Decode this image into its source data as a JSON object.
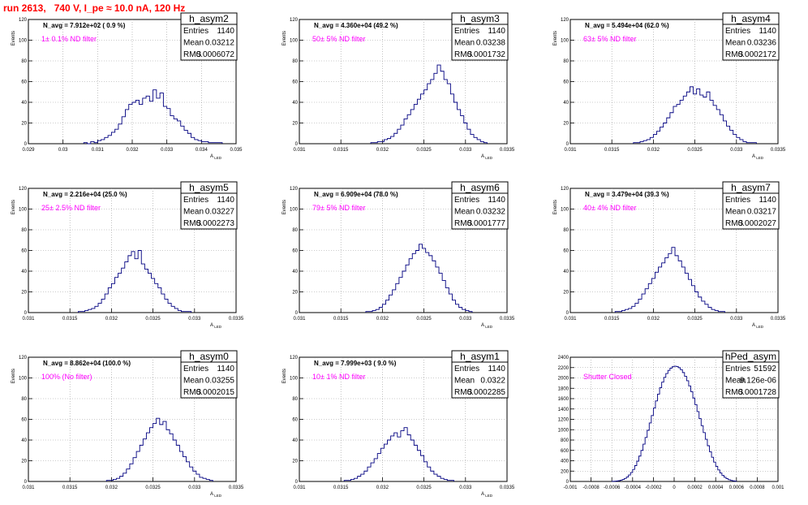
{
  "title": "run 2613,   740 V, I_pe ≈ 10.0 nA, 120 Hz",
  "chart_data": [
    {
      "type": "histogram",
      "name": "h_asym2",
      "n_avg": "N_avg = 7.912e+02 ( 0.9 %)",
      "filter": "1± 0.1% ND filter",
      "stats": {
        "Entries": "1140",
        "Mean": "0.03212",
        "RMS": "0.0006072"
      },
      "xlabel": "A_{LED}",
      "ylabel": "Events",
      "xlim": [
        0.029,
        0.035
      ],
      "ylim": [
        0,
        120
      ],
      "xticks": [
        "0.029",
        "0.03",
        "0.031",
        "0.032",
        "0.033",
        "0.034",
        "0.035"
      ],
      "yticks": [
        "0",
        "20",
        "40",
        "60",
        "80",
        "100",
        "120"
      ],
      "bin_width": 0.0001,
      "bin_start": 0.0306,
      "counts": [
        1,
        0,
        2,
        1,
        3,
        4,
        6,
        8,
        11,
        14,
        19,
        26,
        33,
        38,
        40,
        42,
        38,
        44,
        46,
        41,
        52,
        44,
        49,
        36,
        34,
        27,
        24,
        22,
        17,
        13,
        10,
        6,
        4,
        3,
        2,
        2,
        1,
        1,
        1,
        1
      ]
    },
    {
      "type": "histogram",
      "name": "h_asym3",
      "n_avg": "N_avg = 4.360e+04 (49.2 %)",
      "filter": "50± 5% ND filter",
      "stats": {
        "Entries": "1140",
        "Mean": "0.03238",
        "RMS": "0.0001732"
      },
      "xlabel": "A_{LED}",
      "ylabel": "Events",
      "xlim": [
        0.031,
        0.0335
      ],
      "ylim": [
        0,
        120
      ],
      "xticks": [
        "0.031",
        "0.0315",
        "0.032",
        "0.0325",
        "0.033",
        "0.0335"
      ],
      "yticks": [
        "0",
        "20",
        "40",
        "60",
        "80",
        "100",
        "120"
      ],
      "bin_width": 4e-05,
      "bin_start": 0.03186,
      "counts": [
        1,
        1,
        2,
        2,
        4,
        5,
        7,
        10,
        14,
        18,
        24,
        28,
        33,
        38,
        43,
        48,
        52,
        58,
        62,
        68,
        76,
        70,
        62,
        58,
        48,
        40,
        33,
        27,
        20,
        14,
        9,
        6,
        4,
        2,
        1
      ]
    },
    {
      "type": "histogram",
      "name": "h_asym4",
      "n_avg": "N_avg = 5.494e+04 (62.0 %)",
      "filter": "63± 5% ND filter",
      "stats": {
        "Entries": "1140",
        "Mean": "0.03236",
        "RMS": "0.0002172"
      },
      "xlabel": "A_{LED}",
      "ylabel": "Events",
      "xlim": [
        0.031,
        0.0335
      ],
      "ylim": [
        0,
        120
      ],
      "xticks": [
        "0.031",
        "0.0315",
        "0.032",
        "0.0325",
        "0.033",
        "0.0335"
      ],
      "yticks": [
        "0",
        "20",
        "40",
        "60",
        "80",
        "100",
        "120"
      ],
      "bin_width": 4e-05,
      "bin_start": 0.03176,
      "counts": [
        1,
        1,
        2,
        3,
        4,
        6,
        9,
        12,
        16,
        20,
        25,
        30,
        36,
        38,
        42,
        46,
        50,
        55,
        48,
        53,
        47,
        45,
        50,
        42,
        37,
        33,
        28,
        22,
        17,
        13,
        9,
        6,
        4,
        2,
        1,
        1,
        1
      ]
    },
    {
      "type": "histogram",
      "name": "h_asym5",
      "n_avg": "N_avg = 2.216e+04 (25.0 %)",
      "filter": "25± 2.5% ND filter",
      "stats": {
        "Entries": "1140",
        "Mean": "0.03227",
        "RMS": "0.0002273"
      },
      "xlabel": "A_{LED}",
      "ylabel": "Events",
      "xlim": [
        0.031,
        0.0335
      ],
      "ylim": [
        0,
        120
      ],
      "xticks": [
        "0.031",
        "0.0315",
        "0.032",
        "0.0325",
        "0.033",
        "0.0335"
      ],
      "yticks": [
        "0",
        "20",
        "40",
        "60",
        "80",
        "100",
        "120"
      ],
      "bin_width": 4e-05,
      "bin_start": 0.0316,
      "counts": [
        1,
        1,
        2,
        3,
        4,
        6,
        9,
        13,
        18,
        24,
        28,
        34,
        38,
        43,
        49,
        55,
        59,
        52,
        60,
        47,
        42,
        38,
        33,
        28,
        24,
        18,
        13,
        9,
        6,
        4,
        2,
        1,
        1,
        1
      ]
    },
    {
      "type": "histogram",
      "name": "h_asym6",
      "n_avg": "N_avg = 6.909e+04 (78.0 %)",
      "filter": "79± 5% ND filter",
      "stats": {
        "Entries": "1140",
        "Mean": "0.03232",
        "RMS": "0.0001777"
      },
      "xlabel": "A_{LED}",
      "ylabel": "Events",
      "xlim": [
        0.031,
        0.0335
      ],
      "ylim": [
        0,
        120
      ],
      "xticks": [
        "0.031",
        "0.0315",
        "0.032",
        "0.0325",
        "0.033",
        "0.0335"
      ],
      "yticks": [
        "0",
        "20",
        "40",
        "60",
        "80",
        "100",
        "120"
      ],
      "bin_width": 4e-05,
      "bin_start": 0.0318,
      "counts": [
        1,
        1,
        2,
        3,
        5,
        8,
        12,
        17,
        22,
        28,
        34,
        40,
        46,
        52,
        57,
        60,
        66,
        62,
        58,
        55,
        50,
        44,
        38,
        31,
        24,
        18,
        12,
        8,
        5,
        3,
        2,
        1
      ]
    },
    {
      "type": "histogram",
      "name": "h_asym7",
      "n_avg": "N_avg = 3.479e+04 (39.3 %)",
      "filter": "40± 4% ND filter",
      "stats": {
        "Entries": "1140",
        "Mean": "0.03217",
        "RMS": "0.0002027"
      },
      "xlabel": "A_{LED}",
      "ylabel": "Events",
      "xlim": [
        0.031,
        0.0335
      ],
      "ylim": [
        0,
        120
      ],
      "xticks": [
        "0.031",
        "0.0315",
        "0.032",
        "0.0325",
        "0.033",
        "0.0335"
      ],
      "yticks": [
        "0",
        "20",
        "40",
        "60",
        "80",
        "100",
        "120"
      ],
      "bin_width": 4e-05,
      "bin_start": 0.03154,
      "counts": [
        1,
        1,
        2,
        3,
        4,
        6,
        9,
        13,
        18,
        23,
        28,
        33,
        39,
        44,
        48,
        53,
        57,
        63,
        55,
        50,
        44,
        38,
        32,
        26,
        20,
        15,
        11,
        8,
        5,
        3,
        2,
        1,
        1
      ]
    },
    {
      "type": "histogram",
      "name": "h_asym0",
      "n_avg": "N_avg = 8.862e+04 (100.0 %)",
      "filter": "100% (No filter)",
      "stats": {
        "Entries": "1140",
        "Mean": "0.03255",
        "RMS": "0.0002015"
      },
      "xlabel": "A_{LED}",
      "ylabel": "Events",
      "xlim": [
        0.031,
        0.0335
      ],
      "ylim": [
        0,
        120
      ],
      "xticks": [
        "0.031",
        "0.0315",
        "0.032",
        "0.0325",
        "0.033",
        "0.0335"
      ],
      "yticks": [
        "0",
        "20",
        "40",
        "60",
        "80",
        "100",
        "120"
      ],
      "bin_width": 4e-05,
      "bin_start": 0.03194,
      "counts": [
        1,
        1,
        2,
        3,
        5,
        8,
        12,
        17,
        23,
        29,
        35,
        41,
        47,
        52,
        56,
        61,
        55,
        58,
        50,
        46,
        40,
        35,
        29,
        24,
        19,
        14,
        10,
        7,
        4,
        3,
        2,
        1
      ]
    },
    {
      "type": "histogram",
      "name": "h_asym1",
      "n_avg": "N_avg = 7.999e+03 ( 9.0 %)",
      "filter": "10± 1% ND filter",
      "stats": {
        "Entries": "1140",
        "Mean": "0.0322",
        "RMS": "0.0002285"
      },
      "xlabel": "A_{LED}",
      "ylabel": "Events",
      "xlim": [
        0.031,
        0.0335
      ],
      "ylim": [
        0,
        120
      ],
      "xticks": [
        "0.031",
        "0.0315",
        "0.032",
        "0.0325",
        "0.033",
        "0.0335"
      ],
      "yticks": [
        "0",
        "20",
        "40",
        "60",
        "80",
        "100",
        "120"
      ],
      "bin_width": 4e-05,
      "bin_start": 0.03154,
      "counts": [
        1,
        1,
        2,
        3,
        5,
        7,
        10,
        14,
        18,
        22,
        27,
        32,
        36,
        40,
        44,
        47,
        43,
        49,
        52,
        45,
        40,
        35,
        30,
        25,
        19,
        14,
        10,
        7,
        5,
        3,
        2,
        1,
        1
      ]
    },
    {
      "type": "histogram",
      "name": "hPed_asym",
      "n_avg": "",
      "filter": "Shutter Closed",
      "stats": {
        "Entries": "51592",
        "Mean": "9.126e-06",
        "RMS": "0.0001728"
      },
      "xlabel": "",
      "ylabel": "",
      "xlim": [
        -0.001,
        0.001
      ],
      "ylim": [
        0,
        2400
      ],
      "xticks": [
        "-0.001",
        "-0.0008",
        "-0.0006",
        "-0.0004",
        "-0.0002",
        "0",
        "0.0002",
        "0.0004",
        "0.0006",
        "0.0008",
        "0.001"
      ],
      "yticks": [
        "0",
        "200",
        "400",
        "600",
        "800",
        "1000",
        "1200",
        "1400",
        "1600",
        "1800",
        "2000",
        "2200",
        "2400"
      ],
      "bin_width": 2e-05,
      "bin_start": -0.0006,
      "counts": [
        2,
        4,
        8,
        14,
        24,
        38,
        58,
        86,
        124,
        172,
        232,
        306,
        392,
        490,
        600,
        720,
        850,
        988,
        1130,
        1274,
        1418,
        1556,
        1688,
        1810,
        1918,
        2010,
        2086,
        2146,
        2190,
        2216,
        2226,
        2220,
        2198,
        2160,
        2104,
        2032,
        1946,
        1846,
        1734,
        1612,
        1484,
        1350,
        1214,
        1078,
        944,
        814,
        690,
        574,
        468,
        374,
        292,
        222,
        164,
        118,
        82,
        54,
        34,
        20,
        12,
        6
      ]
    }
  ]
}
